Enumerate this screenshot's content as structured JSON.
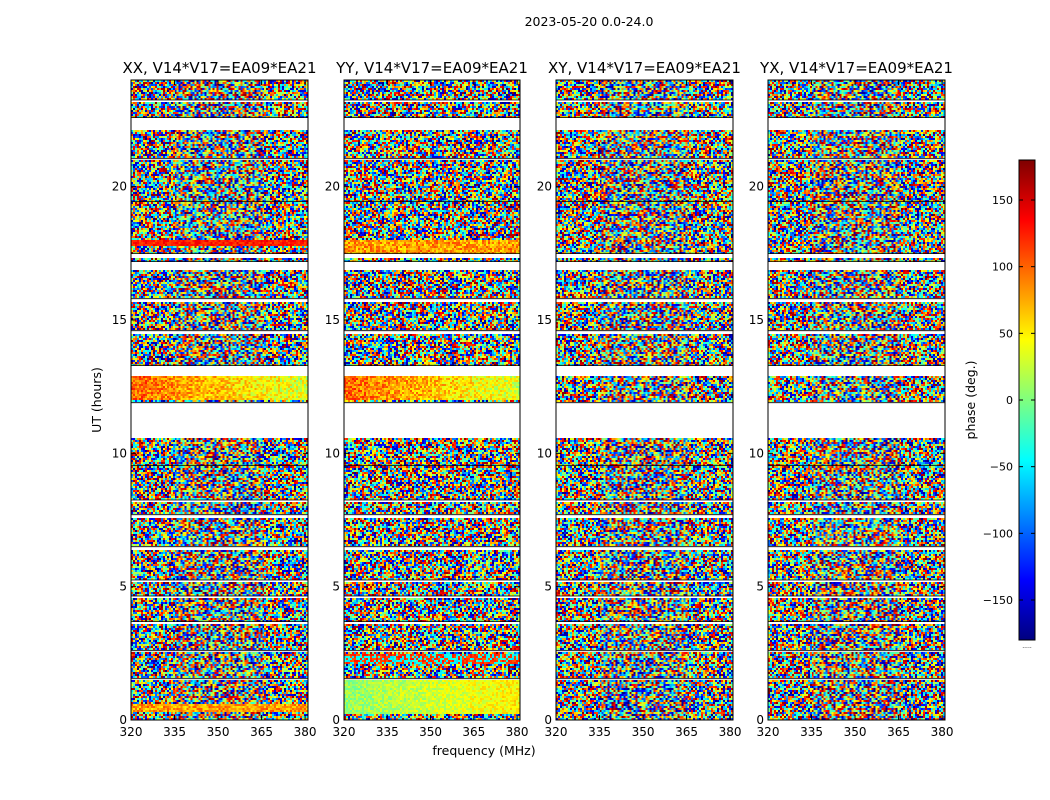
{
  "figure": {
    "suptitle": "2023-05-20 0.0-24.0"
  },
  "chart_data": {
    "type": "heatmap",
    "suptitle": "2023-05-20 0.0-24.0",
    "colormap": "jet",
    "xlabel": "frequency (MHz)",
    "ylabel": "UT (hours)",
    "xlim": [
      320,
      381
    ],
    "ylim": [
      0,
      24
    ],
    "x_ticks": [
      320,
      335,
      350,
      365,
      380
    ],
    "y_ticks": [
      0,
      5,
      10,
      15,
      20
    ],
    "colorbar": {
      "label": "phase (deg.)",
      "range": [
        -180,
        180
      ],
      "ticks": [
        150,
        100,
        50,
        0,
        -50,
        -100,
        -150
      ],
      "tick_labels": [
        "150",
        "100",
        "50",
        "0",
        "−50",
        "−100",
        "−150"
      ],
      "extra_label": "....."
    },
    "panels": [
      {
        "title": "XX, V14*V17=EA09*EA21",
        "polarization": "XX",
        "coherent_bands": [
          [
            12.0,
            12.9,
            "red-to-yellow gradient"
          ],
          [
            0.3,
            0.6,
            "red/yellow"
          ],
          [
            17.8,
            18.0,
            "red"
          ]
        ]
      },
      {
        "title": "YY, V14*V17=EA09*EA21",
        "polarization": "YY",
        "coherent_bands": [
          [
            12.0,
            12.9,
            "red-to-yellow gradient"
          ],
          [
            0.2,
            1.5,
            "green/yellow"
          ],
          [
            2.1,
            2.5,
            "cyan/red"
          ],
          [
            17.3,
            18.0,
            "red/yellow"
          ]
        ]
      },
      {
        "title": "XY, V14*V17=EA09*EA21",
        "polarization": "XY",
        "coherent_bands": []
      },
      {
        "title": "YX, V14*V17=EA09*EA21",
        "polarization": "YX",
        "coherent_bands": []
      }
    ],
    "flagged_gaps_hours": [
      [
        10.6,
        11.9
      ],
      [
        12.9,
        13.3
      ],
      [
        16.9,
        17.2
      ],
      [
        22.1,
        22.6
      ],
      [
        17.3,
        17.5
      ],
      [
        14.5,
        14.6
      ],
      [
        15.7,
        15.8
      ],
      [
        6.4,
        6.5
      ],
      [
        7.6,
        7.7
      ],
      [
        2.55,
        2.6
      ],
      [
        3.6,
        3.7
      ],
      [
        4.6,
        4.65
      ],
      [
        5.2,
        5.25
      ],
      [
        8.2,
        8.25
      ],
      [
        9.5,
        9.55
      ],
      [
        19.4,
        19.45
      ],
      [
        21.0,
        21.05
      ],
      [
        23.2,
        23.25
      ],
      [
        1.5,
        1.55
      ]
    ]
  },
  "colors": {
    "axes": "#000000",
    "background": "#ffffff",
    "jet_stops": [
      "#00007f",
      "#0000ff",
      "#007fff",
      "#00ffff",
      "#7fff7f",
      "#ffff00",
      "#ff7f00",
      "#ff0000",
      "#7f0000"
    ]
  }
}
